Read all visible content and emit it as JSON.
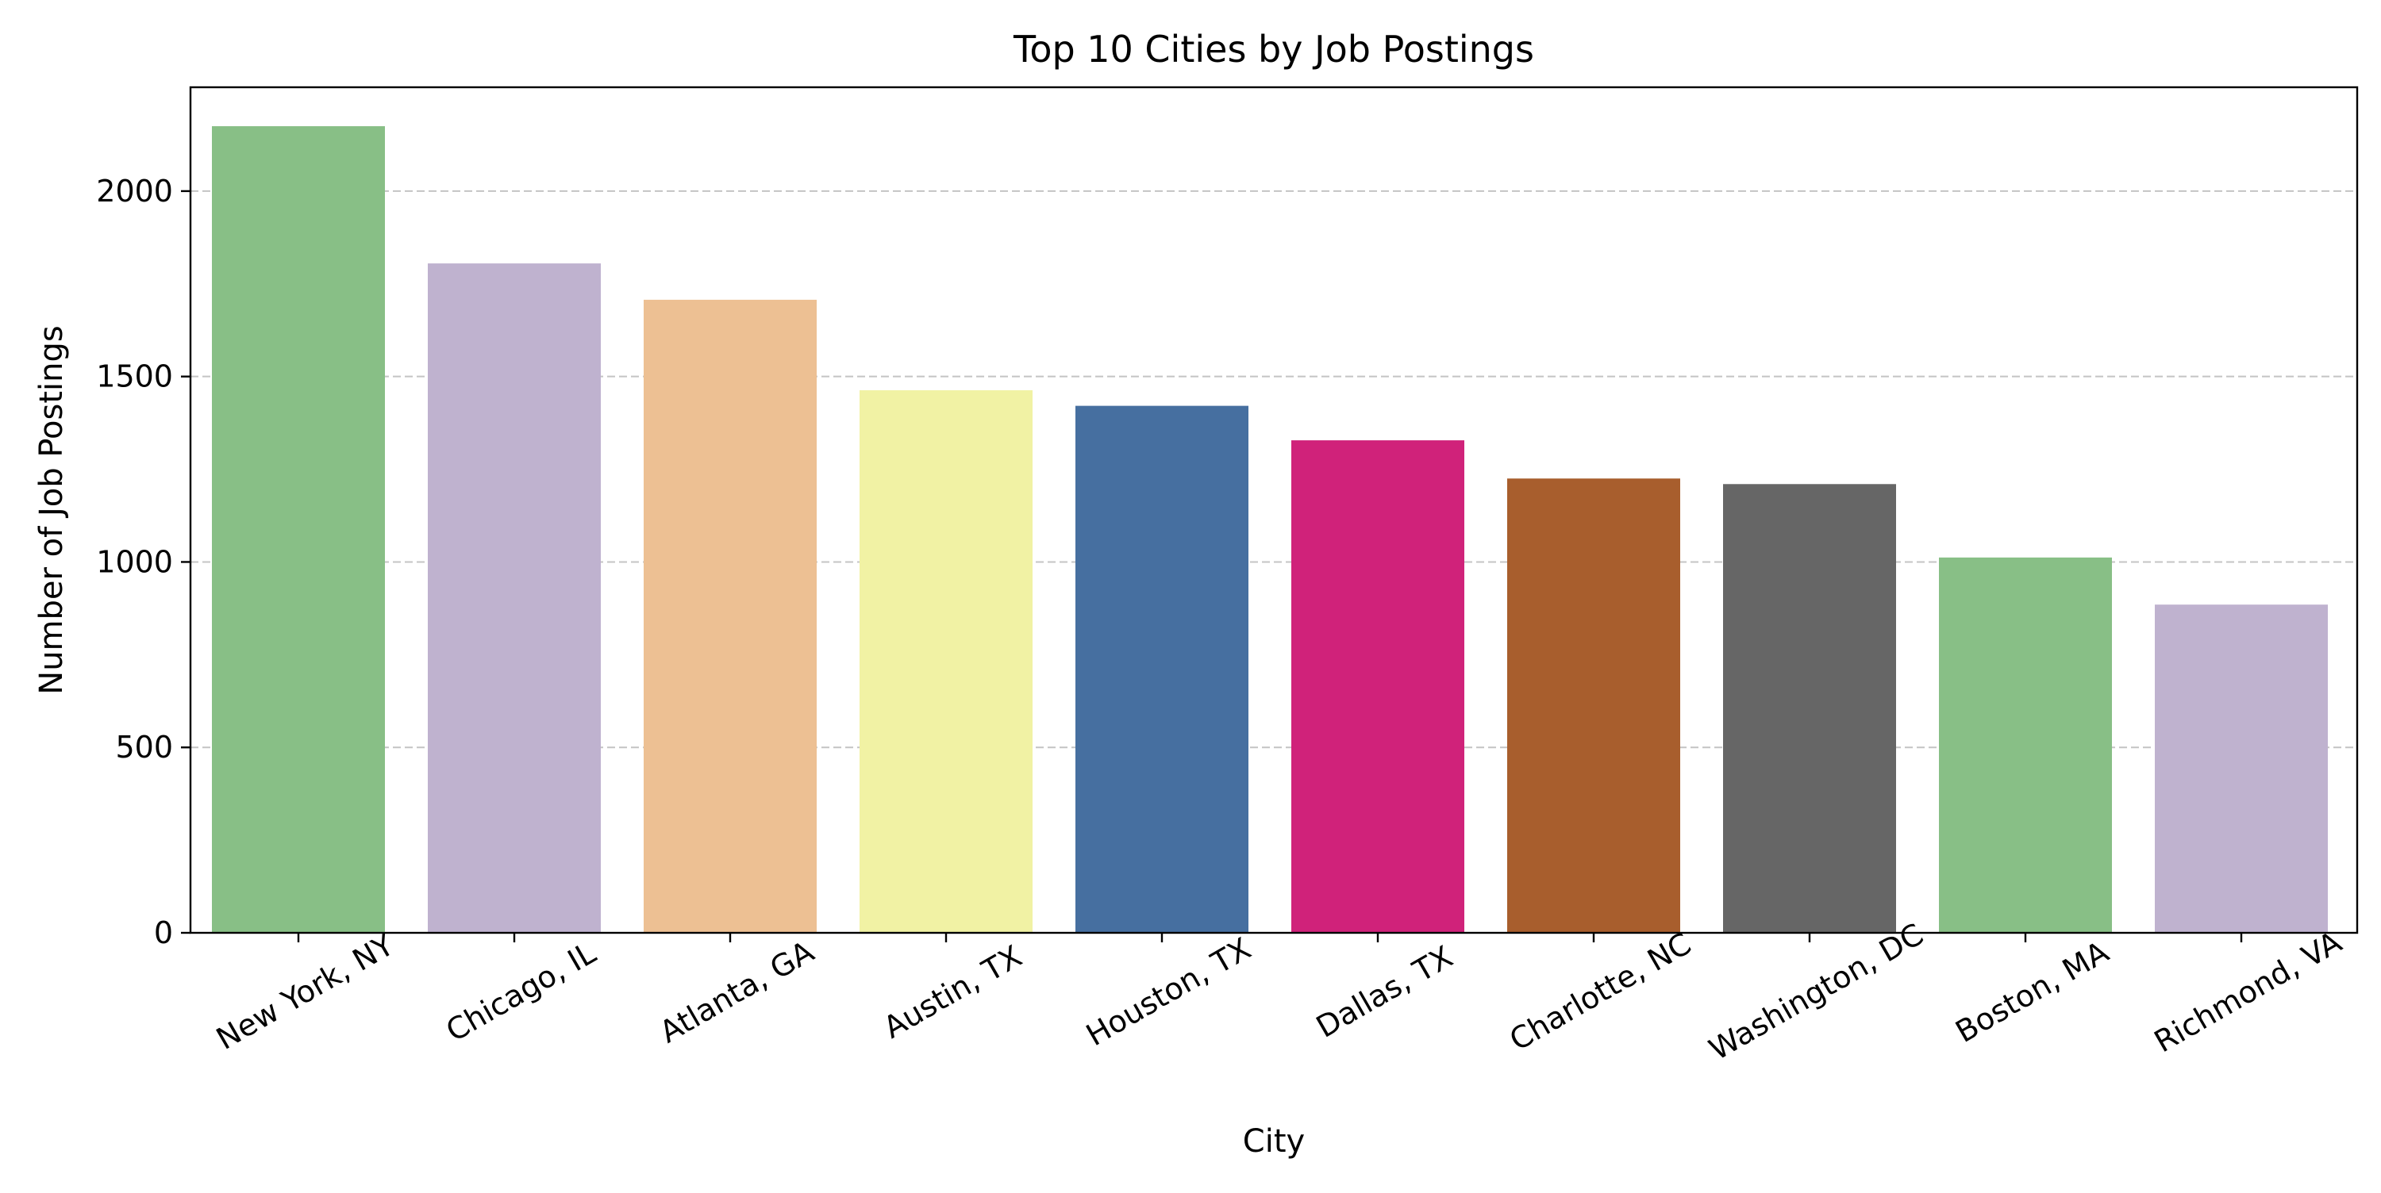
{
  "chart_data": {
    "type": "bar",
    "title": "Top 10 Cities by Job Postings",
    "xlabel": "City",
    "ylabel": "Number of Job Postings",
    "categories": [
      "New York, NY",
      "Chicago, IL",
      "Atlanta, GA",
      "Austin, TX",
      "Houston, TX",
      "Dallas, TX",
      "Charlotte, NC",
      "Washington, DC",
      "Boston, MA",
      "Richmond, VA"
    ],
    "values": [
      2175,
      1805,
      1707,
      1463,
      1421,
      1328,
      1225,
      1210,
      1012,
      885
    ],
    "colors": [
      "#88bf86",
      "#bfb2cf",
      "#edc093",
      "#f1f2a4",
      "#466fa0",
      "#d0227a",
      "#a85e2d",
      "#666666",
      "#88bf86",
      "#bfb2cf"
    ],
    "ylim": [
      0,
      2280
    ],
    "yticks": [
      0,
      500,
      1000,
      1500,
      2000
    ],
    "ytick_labels": [
      "0",
      "500",
      "1000",
      "1500",
      "2000"
    ],
    "grid": "y-dashed",
    "legend": "none"
  }
}
